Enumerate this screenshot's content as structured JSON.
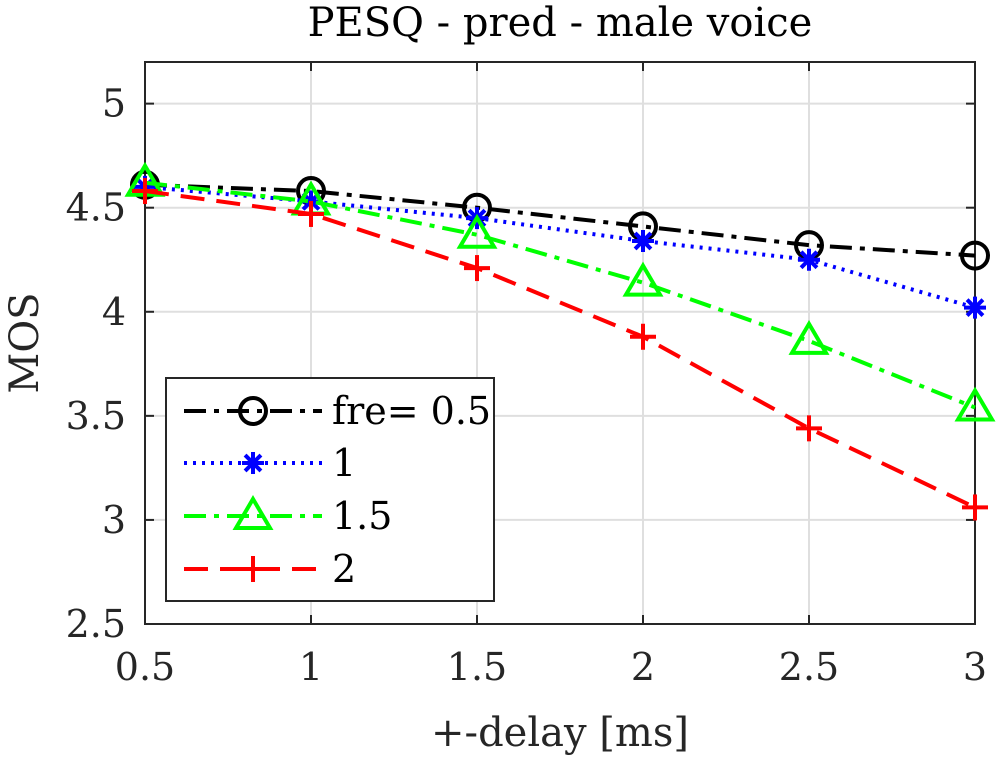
{
  "chart_data": {
    "type": "line",
    "title": "PESQ - pred - male voice",
    "xlabel": "+-delay [ms]",
    "ylabel": "MOS",
    "x": [
      0.5,
      1,
      1.5,
      2,
      2.5,
      3
    ],
    "xlim": [
      0.5,
      3
    ],
    "ylim": [
      2.5,
      5.2
    ],
    "xticks": [
      0.5,
      1,
      1.5,
      2,
      2.5,
      3
    ],
    "xtick_labels": [
      "0.5",
      "1",
      "1.5",
      "2",
      "2.5",
      "3"
    ],
    "yticks": [
      2.5,
      3,
      3.5,
      4,
      4.5,
      5
    ],
    "ytick_labels": [
      "2.5",
      "3",
      "3.5",
      "4",
      "4.5",
      "5"
    ],
    "grid": true,
    "legend_position": "bottom-left",
    "series": [
      {
        "name": "fre= 0.5",
        "color": "#000000",
        "line_style": "dash-dot",
        "marker": "circle",
        "values": [
          4.61,
          4.58,
          4.5,
          4.41,
          4.32,
          4.27
        ]
      },
      {
        "name": "1",
        "color": "#0000ff",
        "line_style": "dotted",
        "marker": "asterisk",
        "values": [
          4.6,
          4.53,
          4.45,
          4.34,
          4.25,
          4.02
        ]
      },
      {
        "name": "1.5",
        "color": "#00ff00",
        "line_style": "dash-dot",
        "marker": "triangle",
        "values": [
          4.62,
          4.53,
          4.37,
          4.14,
          3.86,
          3.54
        ]
      },
      {
        "name": "2",
        "color": "#ff0000",
        "line_style": "dashed",
        "marker": "plus",
        "values": [
          4.58,
          4.47,
          4.21,
          3.88,
          3.44,
          3.06
        ]
      }
    ]
  }
}
